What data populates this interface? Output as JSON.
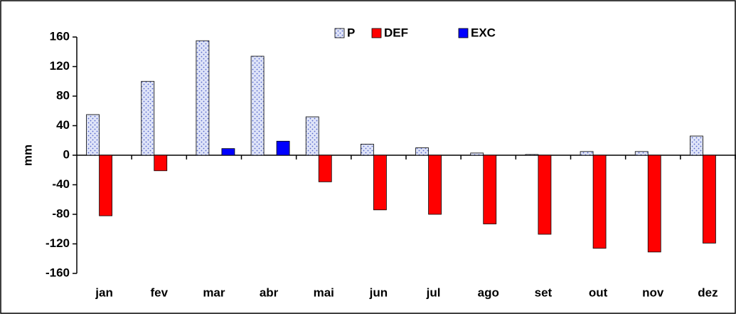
{
  "chart_data": {
    "type": "bar",
    "y_label": "mm",
    "categories": [
      "jan",
      "fev",
      "mar",
      "abr",
      "mai",
      "jun",
      "jul",
      "ago",
      "set",
      "out",
      "nov",
      "dez"
    ],
    "series": [
      {
        "name": "P",
        "color": "#dfe4f8",
        "values": [
          55,
          100,
          155,
          134,
          52,
          15,
          10,
          3,
          1,
          5,
          5,
          26
        ]
      },
      {
        "name": "DEF",
        "color": "#ff0000",
        "values": [
          -82,
          -21,
          0,
          0,
          -36,
          -74,
          -80,
          -93,
          -107,
          -126,
          -131,
          -119
        ]
      },
      {
        "name": "EXC",
        "color": "#0000ff",
        "values": [
          0,
          0,
          9,
          19,
          0,
          0,
          0,
          0,
          0,
          0,
          0,
          0
        ]
      }
    ],
    "ylim": [
      -160,
      160
    ],
    "yticks": [
      -160,
      -120,
      -80,
      -40,
      0,
      40,
      80,
      120,
      160
    ],
    "legend": "top"
  }
}
